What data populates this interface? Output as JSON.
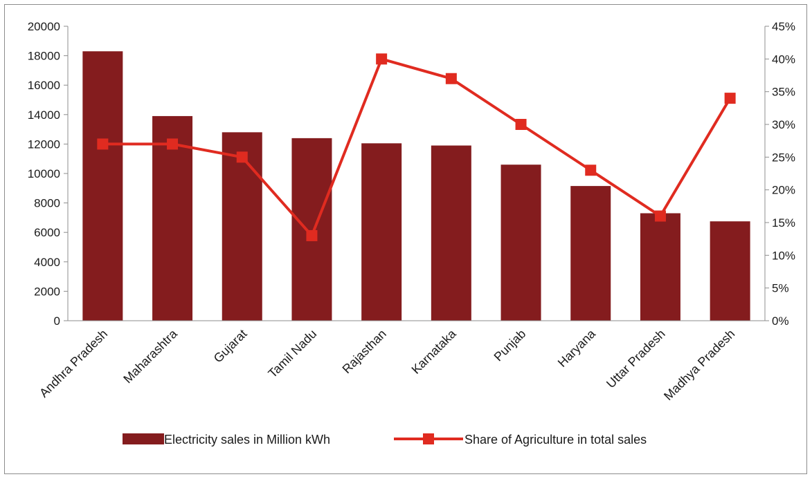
{
  "chart_data": {
    "type": "bar",
    "categories": [
      "Andhra Pradesh",
      "Maharashtra",
      "Gujarat",
      "Tamil Nadu",
      "Rajasthan",
      "Karnataka",
      "Punjab",
      "Haryana",
      "Uttar Pradesh",
      "Madhya Pradesh"
    ],
    "series": [
      {
        "name": "Electricity sales in Million kWh",
        "type": "bar",
        "axis": "left",
        "color": "#841c1e",
        "values": [
          18300,
          13900,
          12800,
          12400,
          12050,
          11900,
          10600,
          9150,
          7300,
          6750
        ]
      },
      {
        "name": "Share of Agriculture in total sales",
        "type": "line",
        "axis": "right",
        "color": "#e02b20",
        "values": [
          0.27,
          0.27,
          0.25,
          0.13,
          0.4,
          0.37,
          0.3,
          0.23,
          0.16,
          0.34
        ]
      }
    ],
    "y_left": {
      "ylim": [
        0,
        20000
      ],
      "ticks": [
        "0",
        "2000",
        "4000",
        "6000",
        "8000",
        "10000",
        "12000",
        "14000",
        "16000",
        "18000",
        "20000"
      ]
    },
    "y_right": {
      "ylim": [
        0,
        0.45
      ],
      "ticks": [
        "0%",
        "5%",
        "10%",
        "15%",
        "20%",
        "25%",
        "30%",
        "35%",
        "40%",
        "45%"
      ]
    },
    "legend_position": "bottom",
    "grid": false
  }
}
